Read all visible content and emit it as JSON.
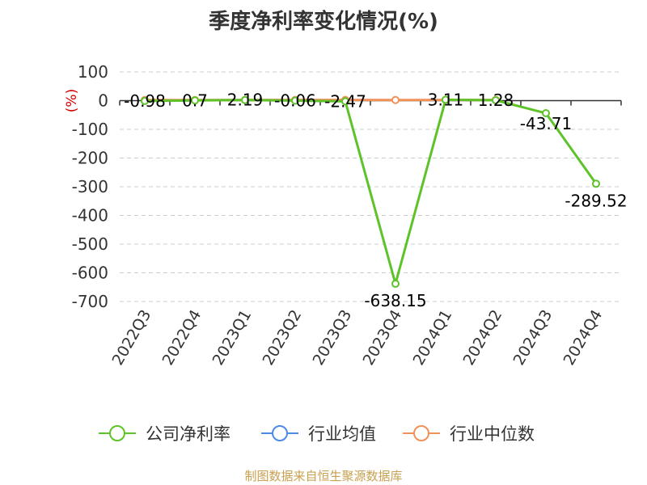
{
  "title": "季度净利率变化情况(%)",
  "footer": "制图数据来自恒生聚源数据库",
  "chart_data": {
    "type": "line",
    "title": "季度净利率变化情况(%)",
    "ylabel": "(%)",
    "ylim": [
      -700,
      100
    ],
    "yticks": [
      100,
      0,
      -100,
      -200,
      -300,
      -400,
      -500,
      -600,
      -700
    ],
    "ytick_labels": [
      "100",
      "0",
      "-100",
      "-200",
      "-300",
      "-400",
      "-500",
      "-600",
      "-700"
    ],
    "categories": [
      "2022Q3",
      "2022Q4",
      "2023Q1",
      "2023Q2",
      "2023Q3",
      "2023Q4",
      "2024Q1",
      "2024Q2",
      "2024Q3",
      "2024Q4"
    ],
    "grid": true,
    "legend_position": "bottom",
    "series": [
      {
        "name": "公司净利率",
        "color": "#5ec229",
        "values": [
          -0.98,
          0.7,
          2.19,
          -0.06,
          -2.47,
          -638.15,
          3.11,
          1.28,
          -43.71,
          -289.52
        ],
        "labels": [
          "-0.98",
          "0.7",
          "2.19",
          "-0.06",
          "-2.47",
          "-638.15",
          "3.11",
          "1.28",
          "-43.71",
          "-289.52"
        ]
      },
      {
        "name": "行业均值",
        "color": "#4d8be6",
        "values": [
          null,
          null,
          null,
          null,
          null,
          null,
          null,
          null,
          null,
          null
        ]
      },
      {
        "name": "行业中位数",
        "color": "#f0915a",
        "values": [
          2.0,
          2.2,
          2.5,
          2.4,
          2.3,
          2.1,
          2.6,
          2.5,
          null,
          null
        ]
      }
    ]
  }
}
